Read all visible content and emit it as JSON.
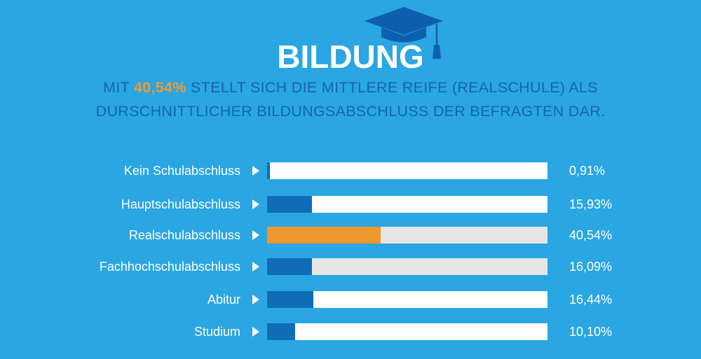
{
  "header": {
    "title": "BILDUNG",
    "subtitle_prefix": "MIT ",
    "subtitle_highlight": "40,54%",
    "subtitle_line1_rest": " STELLT SICH DIE MITTLERE REIFE (REALSCHULE) ALS",
    "subtitle_line2": "DURSCHNITTLICHER BILDUNGSABSCHLUSS DER BEFRAGTEN DAR."
  },
  "colors": {
    "background": "#2aa6e2",
    "bar_fill": "#0f6cb8",
    "highlight": "#f0962e",
    "track": "#ffffff",
    "track_alt": "#e6e6e6"
  },
  "chart_data": {
    "type": "bar",
    "orientation": "horizontal",
    "categories": [
      "Kein Schulabschluss",
      "Hauptschulabschluss",
      "Realschulabschluss",
      "Fachhochschulabschluss",
      "Abitur",
      "Studium"
    ],
    "values": [
      0.91,
      15.93,
      40.54,
      16.09,
      16.44,
      10.1
    ],
    "value_labels": [
      "0,91%",
      "15,93%",
      "40,54%",
      "16,09%",
      "16,44%",
      "10,10%"
    ],
    "xlim": [
      0,
      100
    ],
    "highlighted_category": "Realschulabschluss",
    "grid": false
  }
}
